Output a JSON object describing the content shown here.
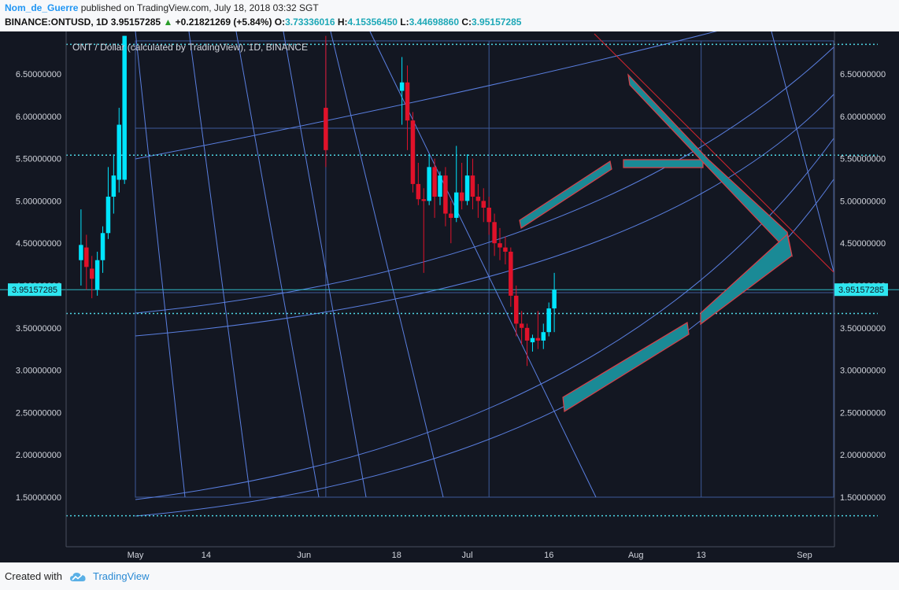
{
  "header": {
    "author": "Nom_de_Guerre",
    "published_text": " published on TradingView.com, July 18, 2018 03:32 SGT",
    "symbol_line": "BINANCE:ONTUSD, 1D",
    "last": "3.95157285",
    "arrow": "▲",
    "change": "+0.21821269 (+5.84%)",
    "o_label": "O:",
    "o_value": "3.73336016",
    "h_label": "H:",
    "h_value": "4.15356450",
    "l_label": "L:",
    "l_value": "3.44698860",
    "c_label": "C:",
    "c_value": "3.95157285"
  },
  "chart_title": "ONT / Dollar (calculated by TradingView), 1D, BINANCE",
  "price_label": "3.95157285",
  "footer": {
    "created_with": "Created with",
    "brand": "TradingView"
  },
  "colors": {
    "background": "#131722",
    "up": "#00e5ff",
    "down": "#e0122a",
    "grid": "#3d5a99",
    "arc": "#5a7fe0",
    "dotted": "#4fd8e6",
    "forecast_fill": "#1a8a96",
    "forecast_stroke": "#d9414a"
  },
  "chart_data": {
    "type": "candlestick",
    "symbol": "BINANCE:ONTUSD",
    "interval": "1D",
    "y_ticks": [
      6.5,
      6.0,
      5.5,
      5.0,
      4.5,
      4.0,
      3.5,
      3.0,
      2.5,
      2.0,
      1.5
    ],
    "y_tick_labels": [
      "6.50000000",
      "6.00000000",
      "5.50000000",
      "5.00000000",
      "4.50000000",
      "4.00000000",
      "3.50000000",
      "3.00000000",
      "2.50000000",
      "2.00000000",
      "1.50000000"
    ],
    "ylim": [
      1.0,
      6.95
    ],
    "x_start": "2018-04-20",
    "x_end": "2018-09-20",
    "x_ticks": [
      {
        "date": "2018-05-01",
        "label": "May"
      },
      {
        "date": "2018-05-14",
        "label": "14"
      },
      {
        "date": "2018-06-01",
        "label": "Jun"
      },
      {
        "date": "2018-06-18",
        "label": "18"
      },
      {
        "date": "2018-07-01",
        "label": "Jul"
      },
      {
        "date": "2018-07-16",
        "label": "16"
      },
      {
        "date": "2018-08-01",
        "label": "Aug"
      },
      {
        "date": "2018-08-13",
        "label": "13"
      },
      {
        "date": "2018-09-01",
        "label": "Sep"
      }
    ],
    "last_price": 3.95157285,
    "horizontal_levels": [
      6.85,
      5.54,
      3.67,
      1.28
    ],
    "candles": [
      {
        "date": "2018-04-21",
        "open": 4.3,
        "high": 4.9,
        "low": 4.0,
        "close": 4.48
      },
      {
        "date": "2018-04-22",
        "open": 4.45,
        "high": 4.6,
        "low": 3.95,
        "close": 4.22
      },
      {
        "date": "2018-04-23",
        "open": 4.2,
        "high": 4.35,
        "low": 3.85,
        "close": 4.08
      },
      {
        "date": "2018-04-24",
        "open": 3.95,
        "high": 4.4,
        "low": 3.88,
        "close": 4.3
      },
      {
        "date": "2018-04-25",
        "open": 4.3,
        "high": 4.7,
        "low": 4.15,
        "close": 4.62
      },
      {
        "date": "2018-04-26",
        "open": 4.62,
        "high": 5.4,
        "low": 4.55,
        "close": 5.05
      },
      {
        "date": "2018-04-27",
        "open": 5.05,
        "high": 5.55,
        "low": 4.85,
        "close": 5.3
      },
      {
        "date": "2018-04-28",
        "open": 5.25,
        "high": 6.1,
        "low": 5.1,
        "close": 5.9
      },
      {
        "date": "2018-04-29",
        "open": 5.25,
        "high": 6.95,
        "low": 5.2,
        "close": 6.95
      },
      {
        "date": "2018-06-05",
        "open": 6.1,
        "high": 6.95,
        "low": 5.4,
        "close": 5.6
      },
      {
        "date": "2018-06-19",
        "open": 6.3,
        "high": 6.7,
        "low": 5.9,
        "close": 6.4
      },
      {
        "date": "2018-06-20",
        "open": 6.4,
        "high": 6.6,
        "low": 5.6,
        "close": 5.95
      },
      {
        "date": "2018-06-21",
        "open": 5.95,
        "high": 6.05,
        "low": 5.1,
        "close": 5.2
      },
      {
        "date": "2018-06-22",
        "open": 5.2,
        "high": 5.45,
        "low": 4.95,
        "close": 5.02
      },
      {
        "date": "2018-06-23",
        "open": 5.02,
        "high": 5.15,
        "low": 4.15,
        "close": 5.0
      },
      {
        "date": "2018-06-24",
        "open": 5.0,
        "high": 5.55,
        "low": 4.95,
        "close": 5.4
      },
      {
        "date": "2018-06-25",
        "open": 5.4,
        "high": 5.5,
        "low": 4.8,
        "close": 5.05
      },
      {
        "date": "2018-06-26",
        "open": 5.05,
        "high": 5.35,
        "low": 4.95,
        "close": 5.3
      },
      {
        "date": "2018-06-27",
        "open": 5.3,
        "high": 5.4,
        "low": 4.7,
        "close": 4.85
      },
      {
        "date": "2018-06-28",
        "open": 4.85,
        "high": 5.0,
        "low": 4.5,
        "close": 4.8
      },
      {
        "date": "2018-06-29",
        "open": 4.8,
        "high": 5.65,
        "low": 4.75,
        "close": 5.1
      },
      {
        "date": "2018-06-30",
        "open": 5.1,
        "high": 5.45,
        "low": 4.9,
        "close": 5.0
      },
      {
        "date": "2018-07-01",
        "open": 5.0,
        "high": 5.55,
        "low": 4.95,
        "close": 5.3
      },
      {
        "date": "2018-07-02",
        "open": 5.3,
        "high": 5.5,
        "low": 4.9,
        "close": 5.05
      },
      {
        "date": "2018-07-03",
        "open": 5.05,
        "high": 5.2,
        "low": 4.8,
        "close": 5.0
      },
      {
        "date": "2018-07-04",
        "open": 5.0,
        "high": 5.15,
        "low": 4.75,
        "close": 4.92
      },
      {
        "date": "2018-07-05",
        "open": 4.92,
        "high": 5.05,
        "low": 4.6,
        "close": 4.75
      },
      {
        "date": "2018-07-06",
        "open": 4.75,
        "high": 4.85,
        "low": 4.35,
        "close": 4.5
      },
      {
        "date": "2018-07-07",
        "open": 4.5,
        "high": 4.68,
        "low": 4.3,
        "close": 4.45
      },
      {
        "date": "2018-07-08",
        "open": 4.45,
        "high": 4.58,
        "low": 4.25,
        "close": 4.4
      },
      {
        "date": "2018-07-09",
        "open": 4.4,
        "high": 4.45,
        "low": 3.75,
        "close": 3.88
      },
      {
        "date": "2018-07-10",
        "open": 3.88,
        "high": 4.0,
        "low": 3.4,
        "close": 3.55
      },
      {
        "date": "2018-07-11",
        "open": 3.55,
        "high": 3.7,
        "low": 3.3,
        "close": 3.5
      },
      {
        "date": "2018-07-12",
        "open": 3.5,
        "high": 3.55,
        "low": 3.05,
        "close": 3.35
      },
      {
        "date": "2018-07-13",
        "open": 3.33,
        "high": 3.42,
        "low": 3.22,
        "close": 3.38
      },
      {
        "date": "2018-07-14",
        "open": 3.38,
        "high": 3.7,
        "low": 3.25,
        "close": 3.35
      },
      {
        "date": "2018-07-15",
        "open": 3.35,
        "high": 3.55,
        "low": 3.25,
        "close": 3.45
      },
      {
        "date": "2018-07-16",
        "open": 3.45,
        "high": 3.8,
        "low": 3.4,
        "close": 3.73
      },
      {
        "date": "2018-07-17",
        "open": 3.73,
        "high": 4.15,
        "low": 3.45,
        "close": 3.95
      }
    ]
  }
}
